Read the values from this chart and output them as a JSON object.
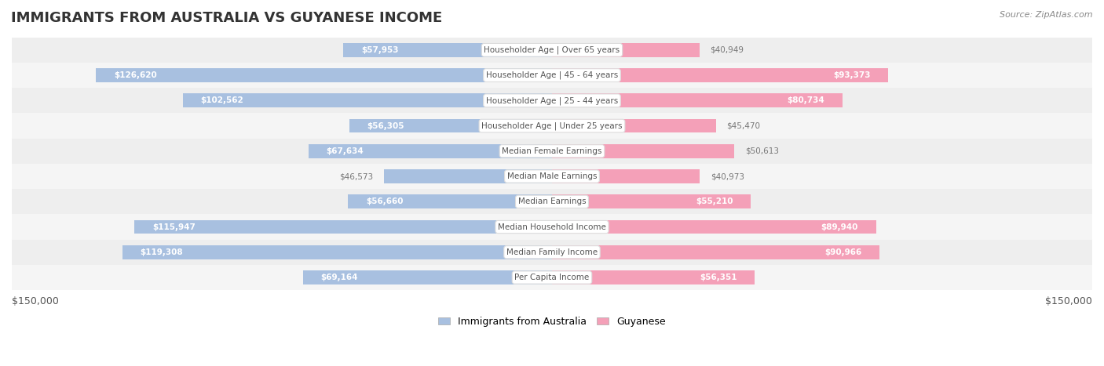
{
  "title": "IMMIGRANTS FROM AUSTRALIA VS GUYANESE INCOME",
  "source": "Source: ZipAtlas.com",
  "categories": [
    "Per Capita Income",
    "Median Family Income",
    "Median Household Income",
    "Median Earnings",
    "Median Male Earnings",
    "Median Female Earnings",
    "Householder Age | Under 25 years",
    "Householder Age | 25 - 44 years",
    "Householder Age | 45 - 64 years",
    "Householder Age | Over 65 years"
  ],
  "australia_values": [
    57953,
    126620,
    102562,
    56305,
    67634,
    46573,
    56660,
    115947,
    119308,
    69164
  ],
  "guyanese_values": [
    40949,
    93373,
    80734,
    45470,
    50613,
    40973,
    55210,
    89940,
    90966,
    56351
  ],
  "australia_labels": [
    "$57,953",
    "$126,620",
    "$102,562",
    "$56,305",
    "$67,634",
    "$46,573",
    "$56,660",
    "$115,947",
    "$119,308",
    "$69,164"
  ],
  "guyanese_labels": [
    "$40,949",
    "$93,373",
    "$80,734",
    "$45,470",
    "$50,613",
    "$40,973",
    "$55,210",
    "$89,940",
    "$90,966",
    "$56,351"
  ],
  "australia_color": "#a8c0e0",
  "guyanese_color": "#f4a0b8",
  "australia_label_color_inner": "#ffffff",
  "australia_label_color_outer": "#888888",
  "guyanese_label_color_inner": "#ffffff",
  "guyanese_label_color_outer": "#888888",
  "max_value": 150000,
  "bar_height": 0.55,
  "row_bg_colors": [
    "#f5f5f5",
    "#eeeeee"
  ],
  "legend_australia": "Immigrants from Australia",
  "legend_guyanese": "Guyanese",
  "xlabel_left": "$150,000",
  "xlabel_right": "$150,000"
}
